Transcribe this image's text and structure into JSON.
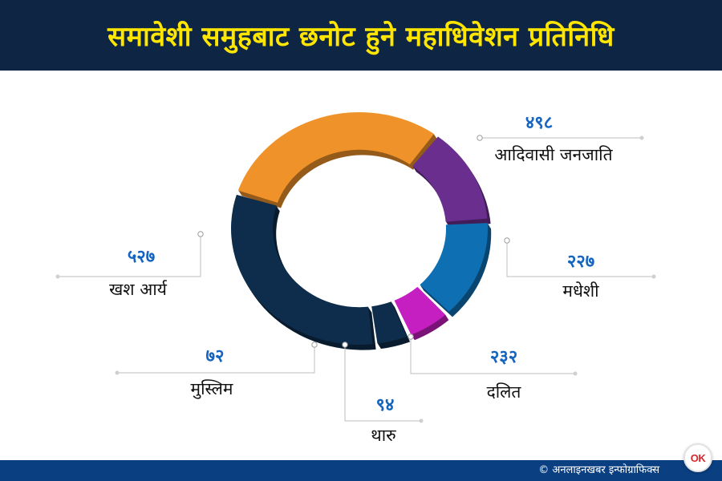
{
  "title": "समावेशी समुहबाट छनोट हुने महाधिवेशन प्रतिनिधि",
  "credit": "© अनलाइनखबर इन्फोग्राफिक्स",
  "logo_text": "OK",
  "colors": {
    "header_bg": "#0f2544",
    "title": "#ffe600",
    "footer_bg": "#0a3f82",
    "value": "#1565c0"
  },
  "chart_data": {
    "type": "pie",
    "style": "donut",
    "slices": [
      {
        "label": "आदिवासी जनजाति",
        "value_label": "४९८",
        "value": 498,
        "color": "#f0922a"
      },
      {
        "label": "मधेशी",
        "value_label": "२२७",
        "value": 227,
        "color": "#6a2e8e"
      },
      {
        "label": "दलित",
        "value_label": "२३२",
        "value": 232,
        "color": "#0e6fb3"
      },
      {
        "label": "थारु",
        "value_label": "९४",
        "value": 94,
        "color": "#c51fc2"
      },
      {
        "label": "मुस्लिम",
        "value_label": "७२",
        "value": 72,
        "color": "#0e2d4c"
      },
      {
        "label": "खश आर्य",
        "value_label": "५२७",
        "value": 527,
        "color": "#0e2d4c"
      }
    ]
  }
}
